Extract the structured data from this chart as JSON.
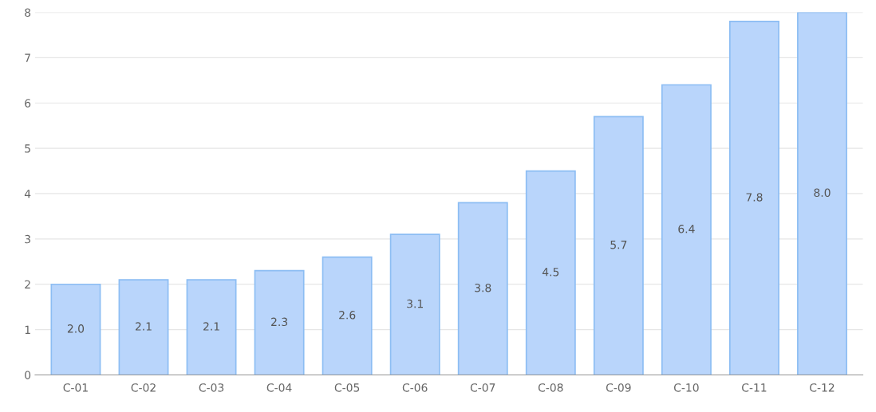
{
  "chart_data": {
    "type": "bar",
    "categories": [
      "C-01",
      "C-02",
      "C-03",
      "C-04",
      "C-05",
      "C-06",
      "C-07",
      "C-08",
      "C-09",
      "C-10",
      "C-11",
      "C-12"
    ],
    "values": [
      2.0,
      2.1,
      2.1,
      2.3,
      2.6,
      3.1,
      3.8,
      4.5,
      5.7,
      6.4,
      7.8,
      8.0
    ],
    "value_labels": [
      "2.0",
      "2.1",
      "2.1",
      "2.3",
      "2.6",
      "3.1",
      "3.8",
      "4.5",
      "5.7",
      "6.4",
      "7.8",
      "8.0"
    ],
    "color": "#b9d5fb",
    "ylim": [
      0,
      8
    ],
    "yticks": [
      0,
      1,
      2,
      3,
      4,
      5,
      6,
      7,
      8
    ],
    "grid": "y",
    "legend": false
  }
}
